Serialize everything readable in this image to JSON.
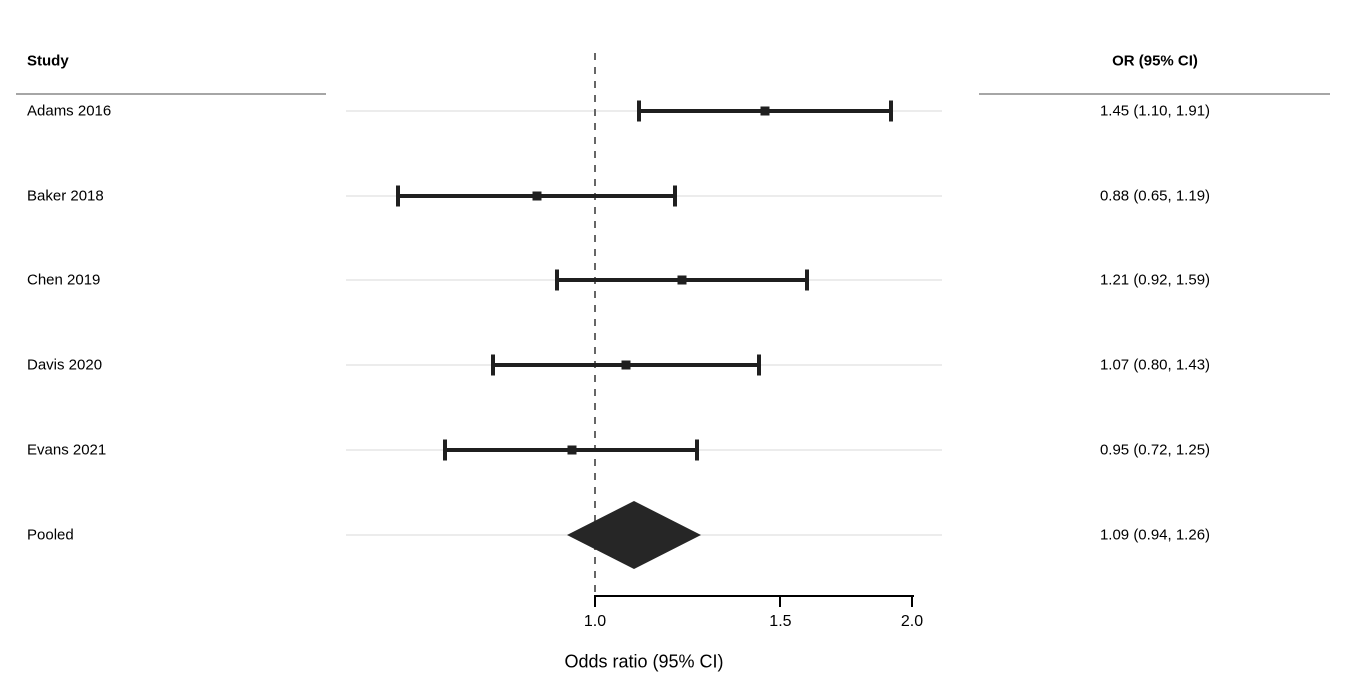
{
  "table": {
    "study_header": "Study",
    "or_header": "OR (95% CI)"
  },
  "colors": {
    "bar": "#1f1f1f",
    "diamond": "#262626",
    "gridline": "#ececec",
    "header_rule": "#a6a6a6",
    "reference_line": "#666666",
    "axis": "#000000",
    "text": "#000000",
    "background": "#ffffff"
  },
  "chart_data": {
    "type": "forest",
    "title": "",
    "xlabel": "Odds ratio (95% CI)",
    "x_scale": "log",
    "xlim": [
      0.58,
      2.13
    ],
    "reference_line": 1.0,
    "axis_ticks": [
      {
        "value": 1.0,
        "label": "1.0"
      },
      {
        "value": 1.5,
        "label": "1.5"
      },
      {
        "value": 2.0,
        "label": "2.0"
      }
    ],
    "studies": [
      {
        "label": "Adams 2016",
        "or": 1.45,
        "ci_low": 1.1,
        "ci_high": 1.91,
        "or_text": "1.45 (1.10, 1.91)"
      },
      {
        "label": "Baker 2018",
        "or": 0.88,
        "ci_low": 0.65,
        "ci_high": 1.19,
        "or_text": "0.88 (0.65, 1.19)"
      },
      {
        "label": "Chen 2019",
        "or": 1.21,
        "ci_low": 0.92,
        "ci_high": 1.59,
        "or_text": "1.21 (0.92, 1.59)"
      },
      {
        "label": "Davis 2020",
        "or": 1.07,
        "ci_low": 0.8,
        "ci_high": 1.43,
        "or_text": "1.07 (0.80, 1.43)"
      },
      {
        "label": "Evans 2021",
        "or": 0.95,
        "ci_low": 0.72,
        "ci_high": 1.25,
        "or_text": "0.95 (0.72, 1.25)"
      }
    ],
    "pooled": {
      "label": "Pooled",
      "or": 1.09,
      "ci_low": 0.94,
      "ci_high": 1.26,
      "or_text": "1.09 (0.94, 1.26)"
    }
  }
}
